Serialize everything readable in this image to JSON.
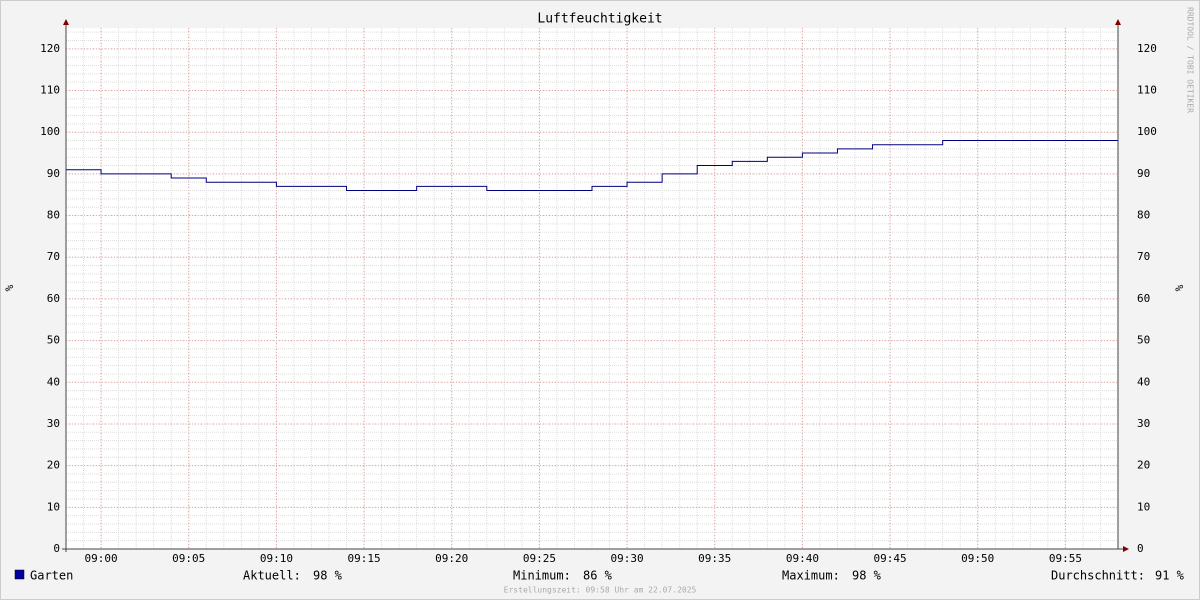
{
  "chart_data": {
    "type": "step",
    "title": "Luftfeuchtigkeit",
    "y_label": "%",
    "watermark": "RRDTOOL / TOBI OETIKER",
    "x": [
      "08:58",
      "09:00",
      "09:04",
      "09:06",
      "09:10",
      "09:14",
      "09:18",
      "09:22",
      "09:28",
      "09:30",
      "09:32",
      "09:34",
      "09:36",
      "09:38",
      "09:40",
      "09:42",
      "09:44",
      "09:48",
      "09:58"
    ],
    "series": [
      {
        "name": "Garten",
        "color": "#000080",
        "legend_color": "#0000a0",
        "values": [
          91,
          90,
          89,
          88,
          87,
          86,
          87,
          86,
          87,
          88,
          90,
          92,
          93,
          94,
          95,
          96,
          97,
          98,
          98
        ]
      }
    ],
    "xlim": [
      "08:58",
      "09:58"
    ],
    "xticks": [
      "09:00",
      "09:05",
      "09:10",
      "09:15",
      "09:20",
      "09:25",
      "09:30",
      "09:35",
      "09:40",
      "09:45",
      "09:50",
      "09:55"
    ],
    "ylim": [
      0,
      125
    ],
    "yticks": [
      0,
      10,
      20,
      30,
      40,
      50,
      60,
      70,
      80,
      90,
      100,
      110,
      120
    ],
    "grid": true,
    "minor_grid": true,
    "right_axis": true,
    "stats": [
      {
        "label": "Aktuell:",
        "value": "98 %"
      },
      {
        "label": "Minimum:",
        "value": "86 %"
      },
      {
        "label": "Maximum:",
        "value": "98 %"
      },
      {
        "label": "Durchschnitt:",
        "value": "91 %"
      }
    ],
    "footer": "Erstellungszeit: 09:58 Uhr am 22.07.2025"
  }
}
